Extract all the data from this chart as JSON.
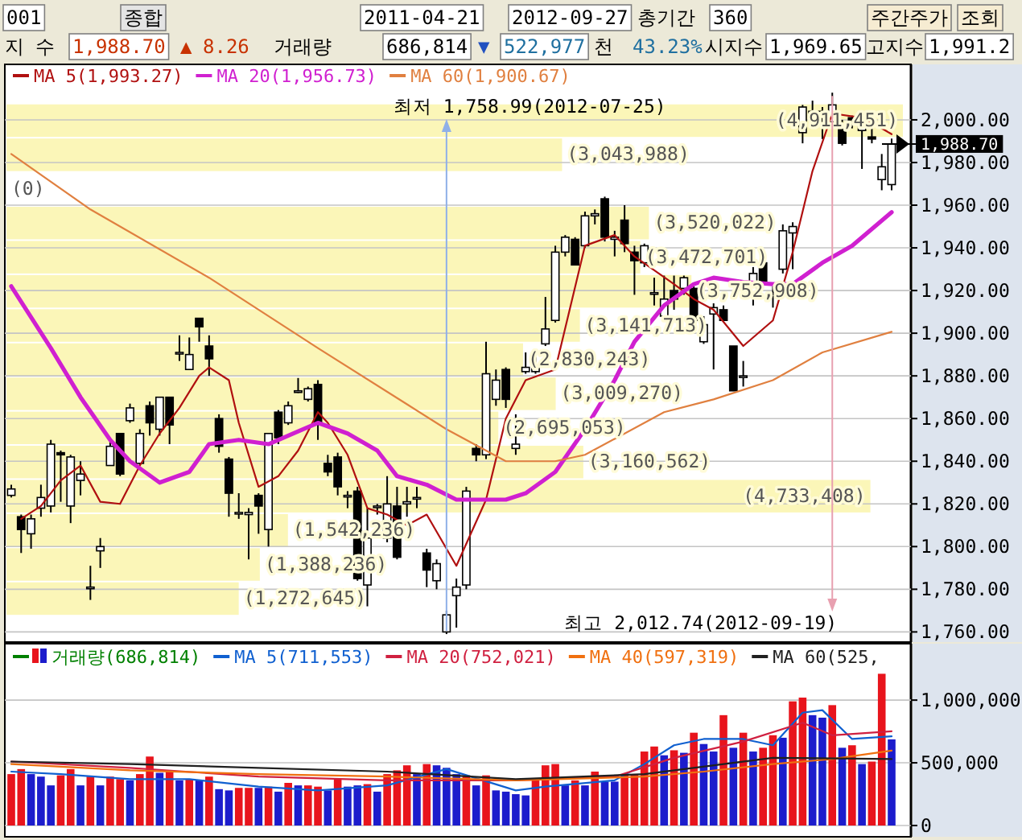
{
  "chart_data": [
    {
      "type": "candlestick",
      "categories": [
        null,
        null,
        null,
        null,
        null,
        null,
        null,
        null,
        null,
        null,
        null,
        null,
        null,
        null,
        null,
        null,
        null,
        null,
        null,
        null,
        null,
        null,
        null,
        null,
        null,
        null,
        null,
        null,
        null,
        null,
        null,
        null,
        null,
        null,
        null,
        null,
        null,
        null,
        null,
        null,
        null,
        null,
        null,
        null,
        null,
        null,
        null,
        null,
        null,
        null,
        null,
        null,
        null,
        null,
        null,
        null,
        null,
        null,
        null,
        null,
        null,
        null,
        null,
        null,
        null,
        null,
        null,
        null,
        null,
        null,
        null,
        null,
        null,
        null,
        null,
        null,
        null,
        null,
        null,
        null,
        null,
        null,
        null,
        null,
        null,
        null,
        null,
        null,
        null,
        null
      ],
      "ohlc": [
        [
          1824,
          1829,
          1823,
          1827
        ],
        [
          1814,
          1815,
          1797,
          1808
        ],
        [
          1806,
          1815,
          1799,
          1813
        ],
        [
          1818,
          1829,
          1814,
          1823
        ],
        [
          1819,
          1850,
          1816,
          1848
        ],
        [
          1844,
          1845,
          1821,
          1843
        ],
        [
          1819,
          1843,
          1811,
          1842
        ],
        [
          1831,
          1840,
          1824,
          1834
        ],
        [
          1781,
          1791,
          1775,
          1781
        ],
        [
          1798,
          1804,
          1790,
          1800
        ],
        [
          1838,
          1850,
          1838,
          1847
        ],
        [
          1853,
          1853,
          1833,
          1834
        ],
        [
          1859,
          1867,
          1858,
          1865
        ],
        [
          1839,
          1855,
          1838,
          1853
        ],
        [
          1866,
          1868,
          1852,
          1858
        ],
        [
          1855,
          1870,
          1852,
          1870
        ],
        [
          1870,
          1870,
          1848,
          1857
        ],
        [
          1891,
          1899,
          1887,
          1891
        ],
        [
          1883,
          1898,
          1883,
          1890
        ],
        [
          1907,
          1907,
          1896,
          1903
        ],
        [
          1894,
          1899,
          1880,
          1888
        ],
        [
          1860,
          1862,
          1844,
          1847
        ],
        [
          1841,
          1842,
          1814,
          1825
        ],
        [
          1816,
          1825,
          1813,
          1816
        ],
        [
          1815,
          1818,
          1794,
          1816
        ],
        [
          1824,
          1825,
          1806,
          1819
        ],
        [
          1808,
          1853,
          1800,
          1853
        ],
        [
          1863,
          1864,
          1848,
          1851
        ],
        [
          1858,
          1868,
          1857,
          1866
        ],
        [
          1873,
          1879,
          1872,
          1873
        ],
        [
          1869,
          1875,
          1868,
          1874
        ],
        [
          1876,
          1878,
          1850,
          1858
        ],
        [
          1839,
          1843,
          1833,
          1835
        ],
        [
          1842,
          1844,
          1824,
          1828
        ],
        [
          1824,
          1826,
          1818,
          1824
        ],
        [
          1826,
          1828,
          1784,
          1785
        ],
        [
          1782,
          1818,
          1772,
          1804
        ],
        [
          1819,
          1820,
          1815,
          1819
        ],
        [
          1804,
          1833,
          1802,
          1820
        ],
        [
          1819,
          1828,
          1794,
          1795
        ],
        [
          1820,
          1828,
          1814,
          1821
        ],
        [
          1823,
          1828,
          1818,
          1823
        ],
        [
          1797,
          1799,
          1781,
          1789
        ],
        [
          1784,
          1794,
          1780,
          1792
        ],
        [
          1760,
          1770,
          1758.99,
          1768
        ],
        [
          1777,
          1785,
          1762,
          1781
        ],
        [
          1782,
          1828,
          1780,
          1826
        ],
        [
          1846,
          1848,
          1840,
          1843
        ],
        [
          1843,
          1896,
          1841,
          1881
        ],
        [
          1869,
          1883,
          1866,
          1878
        ],
        [
          1883,
          1884,
          1865,
          1869
        ],
        [
          1846,
          1862,
          1843,
          1848
        ],
        [
          1882,
          1891,
          1881,
          1884
        ],
        [
          1882,
          1891,
          1881,
          1885
        ],
        [
          1895,
          1917,
          1894,
          1902
        ],
        [
          1906,
          1941,
          1905,
          1938
        ],
        [
          1938,
          1946,
          1936,
          1945
        ],
        [
          1944,
          1945,
          1932,
          1932
        ],
        [
          1941,
          1957,
          1940,
          1955
        ],
        [
          1955,
          1958,
          1951,
          1956
        ],
        [
          1963,
          1964,
          1943,
          1945
        ],
        [
          1944,
          1948,
          1936,
          1945
        ],
        [
          1953,
          1960,
          1938,
          1942
        ],
        [
          1938,
          1941,
          1918,
          1934
        ],
        [
          1933,
          1942,
          1931,
          1941
        ],
        [
          1919,
          1926,
          1913,
          1919
        ],
        [
          1908,
          1927,
          1907,
          1916
        ],
        [
          1920,
          1927,
          1911,
          1916
        ],
        [
          1921,
          1927,
          1918,
          1926
        ],
        [
          1921,
          1922,
          1901,
          1906
        ],
        [
          1896,
          1908,
          1895,
          1904
        ],
        [
          1909,
          1914,
          1883,
          1912
        ],
        [
          1911,
          1913,
          1906,
          1906
        ],
        [
          1894,
          1894,
          1873,
          1873
        ],
        [
          1880,
          1887,
          1875,
          1880
        ],
        [
          1917,
          1931,
          1913,
          1928
        ],
        [
          1933,
          1937,
          1923,
          1923
        ],
        [
          1918,
          1922,
          1912,
          1918
        ],
        [
          1930,
          1951,
          1928,
          1948
        ],
        [
          1947,
          1952,
          1930,
          1950
        ],
        [
          1994,
          2007,
          1989,
          2006
        ],
        [
          2004,
          2009,
          2001,
          2002
        ],
        [
          2003,
          2006,
          1991,
          2004
        ],
        [
          1999,
          2012.74,
          1997,
          2007
        ],
        [
          1996,
          2000,
          1988,
          1989
        ],
        [
          2001,
          2002,
          1996,
          2000
        ],
        [
          1995,
          2002,
          1977,
          2001
        ],
        [
          1992,
          1997,
          1989,
          1991
        ],
        [
          1972,
          1984,
          1967,
          1978
        ],
        [
          1969.65,
          1991.26,
          1967,
          1988.7
        ]
      ],
      "series": [
        {
          "name": "MA 5(1,993.27)",
          "type": "line",
          "color": "#b01010",
          "values": [
            null,
            1813,
            null,
            1819,
            null,
            1831,
            null,
            1838,
            null,
            1821,
            null,
            1820,
            null,
            1838,
            null,
            1853,
            null,
            1865,
            null,
            1880,
            1884,
            null,
            1878,
            1858,
            null,
            1828,
            null,
            1833,
            null,
            1845,
            null,
            1863,
            1858,
            null,
            1843,
            null,
            1818,
            null,
            1815,
            null,
            1810,
            null,
            1815,
            null,
            null,
            1791,
            null,
            null,
            1822,
            null,
            1860,
            null,
            1878,
            null,
            null,
            1883,
            null,
            null,
            1941,
            null,
            null,
            1946,
            null,
            1936,
            null,
            null,
            null,
            1923,
            null,
            1916,
            null,
            1911,
            null,
            null,
            1894,
            null,
            null,
            1906,
            null,
            1938,
            null,
            1976,
            null,
            2003,
            null,
            null,
            2001,
            null,
            1996,
            1993.27
          ]
        },
        {
          "name": "MA 20(1,956.73)",
          "type": "line",
          "color": "#d020d0",
          "values": [
            1922,
            null,
            null,
            null,
            1893,
            null,
            null,
            1870,
            null,
            null,
            1850,
            null,
            1840,
            null,
            null,
            1830,
            null,
            null,
            1835,
            null,
            1848,
            null,
            null,
            1850,
            null,
            null,
            1848,
            null,
            null,
            1854,
            null,
            1858,
            null,
            null,
            1853,
            null,
            null,
            1845,
            null,
            1833,
            null,
            null,
            1829,
            null,
            null,
            1822,
            null,
            null,
            null,
            null,
            1822,
            null,
            1825,
            null,
            null,
            1835,
            null,
            null,
            1855,
            null,
            null,
            1878,
            null,
            1896,
            null,
            null,
            1913,
            null,
            null,
            1923,
            null,
            1926,
            null,
            null,
            1924,
            null,
            null,
            1923,
            null,
            1923,
            null,
            null,
            1933,
            null,
            null,
            1941,
            null,
            null,
            null,
            1956.73
          ]
        },
        {
          "name": "MA 60(1,900.67)",
          "type": "line",
          "color": "#e08040",
          "values": [
            1984,
            null,
            null,
            null,
            null,
            null,
            null,
            null,
            1958,
            null,
            null,
            null,
            null,
            null,
            null,
            null,
            null,
            null,
            null,
            null,
            1926,
            null,
            null,
            null,
            null,
            null,
            null,
            null,
            null,
            null,
            null,
            1893,
            null,
            null,
            null,
            null,
            null,
            null,
            null,
            null,
            null,
            null,
            null,
            null,
            1855,
            null,
            null,
            null,
            null,
            null,
            1840,
            null,
            null,
            null,
            null,
            1840,
            null,
            null,
            1843,
            null,
            null,
            null,
            null,
            null,
            null,
            null,
            1863,
            null,
            null,
            null,
            null,
            1869,
            null,
            null,
            null,
            null,
            null,
            1878,
            null,
            null,
            null,
            null,
            1891,
            null,
            null,
            null,
            null,
            null,
            null,
            1900.67
          ]
        }
      ],
      "ylim": [
        1756,
        2026
      ],
      "yticks": [
        {
          "value": 1760,
          "label": "1,760.00"
        },
        {
          "value": 1780,
          "label": "1,780.00"
        },
        {
          "value": 1800,
          "label": "1,800.00"
        },
        {
          "value": 1820,
          "label": "1,820.00"
        },
        {
          "value": 1840,
          "label": "1,840.00"
        },
        {
          "value": 1860,
          "label": "1,860.00"
        },
        {
          "value": 1880,
          "label": "1,880.00"
        },
        {
          "value": 1900,
          "label": "1,900.00"
        },
        {
          "value": 1920,
          "label": "1,920.00"
        },
        {
          "value": 1940,
          "label": "1,940.00"
        },
        {
          "value": 1960,
          "label": "1,960.00"
        },
        {
          "value": 1980,
          "label": "1,980.00"
        },
        {
          "value": 2000,
          "label": "2,000.00"
        }
      ],
      "tick_labels": "y",
      "grid": "y",
      "legend": "top left",
      "bands": [
        {
          "axis": "y",
          "from": 1768,
          "to": 1784,
          "label": "(1,272,645)",
          "color": "#fbf6b8"
        },
        {
          "axis": "y",
          "from": 1784,
          "to": 1800,
          "label": "(1,388,236)",
          "color": "#fbf6b8"
        },
        {
          "axis": "y",
          "from": 1800,
          "to": 1816,
          "label": "(1,542,236)",
          "color": "#fbf6b8"
        },
        {
          "axis": "y",
          "from": 1816,
          "to": 1832,
          "label": "(4,733,408)",
          "color": "#fbf6b8"
        },
        {
          "axis": "y",
          "from": 1832,
          "to": 1848,
          "label": "(3,160,562)",
          "color": "#fbf6b8"
        },
        {
          "axis": "y",
          "from": 1848,
          "to": 1864,
          "label": "(2,695,053)",
          "color": "#fbf6b8"
        },
        {
          "axis": "y",
          "from": 1864,
          "to": 1880,
          "label": "(3,009,270)",
          "color": "#fbf6b8"
        },
        {
          "axis": "y",
          "from": 1880,
          "to": 1896,
          "label": "(2,830,243)",
          "color": "#fbf6b8"
        },
        {
          "axis": "y",
          "from": 1896,
          "to": 1912,
          "label": "(3,141,713)",
          "color": "#fbf6b8"
        },
        {
          "axis": "y",
          "from": 1912,
          "to": 1928,
          "label": "(3,752,908)",
          "color": "#fbf6b8"
        },
        {
          "axis": "y",
          "from": 1928,
          "to": 1944,
          "label": "(3,472,701)",
          "color": "#fbf6b8"
        },
        {
          "axis": "y",
          "from": 1944,
          "to": 1960,
          "label": "(3,520,022)",
          "color": "#fbf6b8"
        },
        {
          "axis": "y",
          "from": 1976,
          "to": 1992,
          "label": "(3,043,988)",
          "color": "#fbf6b8"
        },
        {
          "axis": "y",
          "from": 1992,
          "to": 2008,
          "label": "(4,911,451)",
          "color": "#fbf6b8"
        }
      ],
      "ref_lines": [
        {
          "axis": "y",
          "value": 1988.7,
          "label": "1,988.70",
          "color": "#000000"
        }
      ],
      "annotations": [
        "001",
        "종합",
        "2011-04-21",
        "2012-09-27",
        "총기간",
        "360",
        "주간주가",
        "조회",
        "지 수",
        "1,988.70",
        "▲",
        "8.26",
        "거래량",
        "686,814",
        "▼",
        "522,977",
        "천",
        "43.23%",
        "시지수",
        "1,969.65",
        "고지수",
        "1,991.2",
        "최저 1,758.99(2012-07-25)",
        "최고 2,012.74(2012-09-19)",
        "(0)"
      ]
    },
    {
      "type": "bar",
      "categories": [
        null,
        null,
        null,
        null,
        null,
        null,
        null,
        null,
        null,
        null,
        null,
        null,
        null,
        null,
        null,
        null,
        null,
        null,
        null,
        null,
        null,
        null,
        null,
        null,
        null,
        null,
        null,
        null,
        null,
        null,
        null,
        null,
        null,
        null,
        null,
        null,
        null,
        null,
        null,
        null,
        null,
        null,
        null,
        null,
        null,
        null,
        null,
        null,
        null,
        null,
        null,
        null,
        null,
        null,
        null,
        null,
        null,
        null,
        null,
        null,
        null,
        null,
        null,
        null,
        null,
        null,
        null,
        null,
        null,
        null,
        null,
        null,
        null,
        null,
        null,
        null,
        null,
        null,
        null,
        null,
        null,
        null,
        null,
        null,
        null,
        null,
        null,
        null,
        null,
        null
      ],
      "series": [
        {
          "name": "거래량(686,814)",
          "type": "bar",
          "color": "#008000",
          "colors": [
            "#e8141c",
            "#e8141c",
            "#1c1ccc",
            "#1c1ccc",
            "#1c1ccc",
            "#e8141c",
            "#e8141c",
            "#1c1ccc",
            "#e8141c",
            "#1c1ccc",
            "#e8141c",
            "#e8141c",
            "#1c1ccc",
            "#e8141c",
            "#e8141c",
            "#1c1ccc",
            "#e8141c",
            "#1c1ccc",
            "#e8141c",
            "#1c1ccc",
            "#e8141c",
            "#1c1ccc",
            "#1c1ccc",
            "#e8141c",
            "#e8141c",
            "#1c1ccc",
            "#e8141c",
            "#1c1ccc",
            "#e8141c",
            "#1c1ccc",
            "#e8141c",
            "#e8141c",
            "#1c1ccc",
            "#e8141c",
            "#1c1ccc",
            "#1c1ccc",
            "#e8141c",
            "#1c1ccc",
            "#e8141c",
            "#e8141c",
            "#e8141c",
            "#1c1ccc",
            "#e8141c",
            "#1c1ccc",
            "#1c1ccc",
            "#1c1ccc",
            "#e8141c",
            "#1c1ccc",
            "#e8141c",
            "#1c1ccc",
            "#1c1ccc",
            "#1c1ccc",
            "#1c1ccc",
            "#e8141c",
            "#e8141c",
            "#e8141c",
            "#1c1ccc",
            "#e8141c",
            "#1c1ccc",
            "#e8141c",
            "#1c1ccc",
            "#1c1ccc",
            "#e8141c",
            "#e8141c",
            "#e8141c",
            "#e8141c",
            "#1c1ccc",
            "#e8141c",
            "#1c1ccc",
            "#e8141c",
            "#1c1ccc",
            "#1c1ccc",
            "#e8141c",
            "#1c1ccc",
            "#e8141c",
            "#1c1ccc",
            "#e8141c",
            "#e8141c",
            "#1c1ccc",
            "#e8141c",
            "#e8141c",
            "#1c1ccc",
            "#1c1ccc",
            "#e8141c",
            "#1c1ccc",
            "#e8141c",
            "#1c1ccc",
            "#e8141c",
            "#e8141c",
            "#1c1ccc"
          ],
          "values": [
            410000,
            450000,
            410000,
            390000,
            320000,
            400000,
            450000,
            320000,
            390000,
            320000,
            390000,
            370000,
            360000,
            410000,
            550000,
            420000,
            440000,
            360000,
            370000,
            360000,
            390000,
            290000,
            280000,
            300000,
            300000,
            300000,
            310000,
            270000,
            340000,
            320000,
            320000,
            310000,
            280000,
            370000,
            310000,
            320000,
            330000,
            270000,
            410000,
            440000,
            480000,
            410000,
            490000,
            480000,
            460000,
            410000,
            400000,
            320000,
            400000,
            280000,
            270000,
            250000,
            240000,
            360000,
            480000,
            490000,
            320000,
            360000,
            320000,
            430000,
            350000,
            350000,
            400000,
            410000,
            590000,
            630000,
            560000,
            600000,
            580000,
            740000,
            650000,
            590000,
            880000,
            620000,
            740000,
            590000,
            620000,
            720000,
            700000,
            990000,
            1020000,
            880000,
            860000,
            960000,
            620000,
            640000,
            490000,
            510000,
            1210000,
            686814
          ]
        },
        {
          "name": "MA 5(711,553)",
          "type": "line",
          "color": "#1060d0",
          "values": [
            430000,
            null,
            null,
            null,
            null,
            410000,
            null,
            null,
            null,
            null,
            null,
            null,
            370000,
            null,
            null,
            null,
            null,
            null,
            370000,
            null,
            null,
            null,
            null,
            null,
            null,
            310000,
            null,
            null,
            null,
            null,
            null,
            280000,
            null,
            null,
            null,
            null,
            null,
            null,
            320000,
            null,
            null,
            null,
            null,
            null,
            450000,
            null,
            null,
            null,
            null,
            null,
            null,
            280000,
            null,
            null,
            310000,
            null,
            null,
            null,
            null,
            null,
            null,
            360000,
            null,
            null,
            490000,
            null,
            null,
            640000,
            null,
            null,
            690000,
            null,
            null,
            null,
            690000,
            null,
            null,
            640000,
            null,
            null,
            900000,
            null,
            920000,
            null,
            null,
            690000,
            null,
            null,
            null,
            711553
          ]
        },
        {
          "name": "MA 20(752,021)",
          "type": "line",
          "color": "#d02040",
          "values": [
            510000,
            null,
            null,
            null,
            null,
            null,
            null,
            null,
            null,
            null,
            null,
            null,
            460000,
            null,
            null,
            null,
            null,
            null,
            null,
            null,
            null,
            null,
            null,
            null,
            null,
            390000,
            null,
            null,
            null,
            null,
            null,
            null,
            null,
            null,
            null,
            null,
            null,
            null,
            360000,
            null,
            null,
            null,
            null,
            null,
            null,
            null,
            null,
            null,
            null,
            null,
            null,
            360000,
            null,
            null,
            null,
            null,
            null,
            null,
            null,
            null,
            null,
            390000,
            null,
            null,
            null,
            null,
            null,
            540000,
            null,
            null,
            null,
            null,
            null,
            null,
            670000,
            null,
            null,
            null,
            null,
            null,
            820000,
            null,
            null,
            720000,
            null,
            null,
            null,
            null,
            null,
            752021
          ]
        },
        {
          "name": "MA 40(597,319)",
          "type": "line",
          "color": "#f07010",
          "values": [
            490000,
            null,
            null,
            null,
            null,
            null,
            null,
            null,
            null,
            null,
            null,
            null,
            440000,
            null,
            null,
            null,
            null,
            null,
            null,
            null,
            null,
            null,
            null,
            null,
            null,
            410000,
            null,
            null,
            null,
            null,
            null,
            null,
            null,
            null,
            null,
            null,
            null,
            null,
            390000,
            null,
            null,
            null,
            null,
            null,
            null,
            null,
            null,
            null,
            null,
            null,
            null,
            360000,
            null,
            null,
            null,
            null,
            null,
            null,
            null,
            null,
            null,
            null,
            null,
            null,
            390000,
            null,
            null,
            null,
            null,
            null,
            430000,
            null,
            null,
            null,
            null,
            null,
            null,
            490000,
            null,
            null,
            null,
            null,
            null,
            530000,
            null,
            null,
            null,
            null,
            null,
            597319
          ]
        },
        {
          "name": "MA 60(525,",
          "type": "line",
          "color": "#202020",
          "values": [
            510000,
            null,
            null,
            null,
            null,
            null,
            null,
            null,
            null,
            null,
            null,
            null,
            490000,
            null,
            null,
            null,
            null,
            null,
            null,
            null,
            null,
            null,
            null,
            null,
            null,
            460000,
            null,
            null,
            null,
            null,
            null,
            null,
            null,
            null,
            null,
            null,
            null,
            null,
            430000,
            null,
            null,
            null,
            null,
            null,
            null,
            null,
            null,
            null,
            null,
            null,
            null,
            370000,
            null,
            null,
            null,
            null,
            null,
            null,
            null,
            null,
            null,
            null,
            null,
            null,
            410000,
            null,
            null,
            null,
            null,
            null,
            null,
            null,
            null,
            null,
            null,
            null,
            null,
            540000,
            null,
            null,
            null,
            null,
            null,
            null,
            null,
            null,
            null,
            null,
            null,
            530000
          ]
        }
      ],
      "ylim": [
        0,
        1450000
      ],
      "yticks": [
        0,
        {
          "value": 500000,
          "label": "500,000"
        },
        {
          "value": 1000000,
          "label": "1,000,000"
        }
      ],
      "tick_labels": "y",
      "grid": "y",
      "legend": "top left"
    }
  ]
}
